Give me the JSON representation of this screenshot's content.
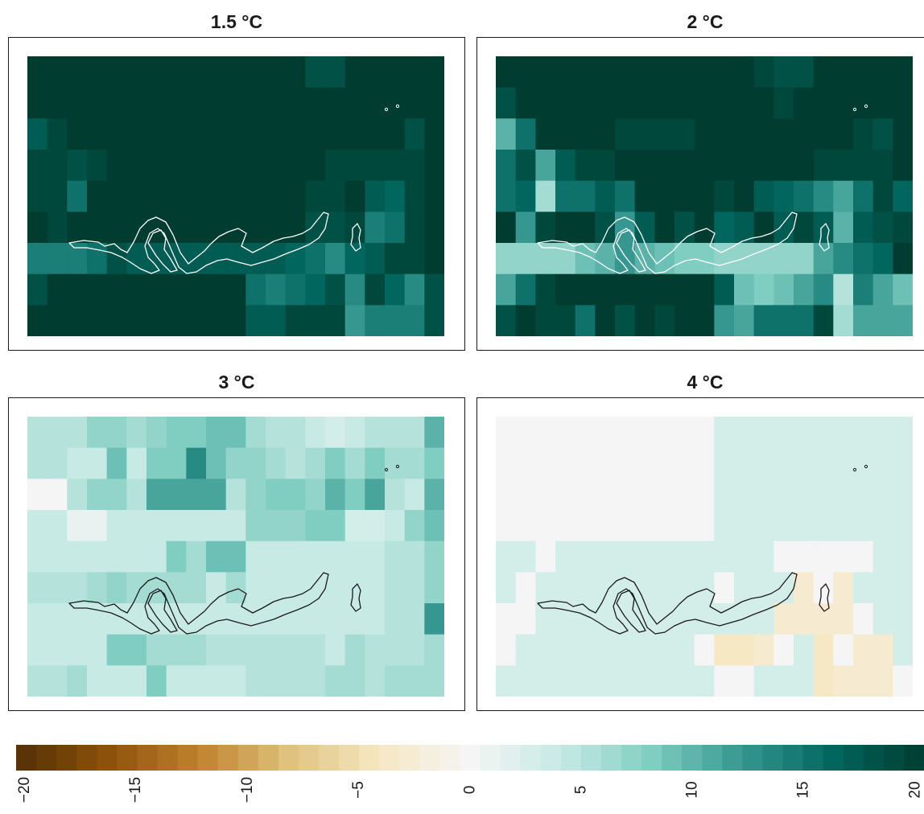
{
  "chart_data": {
    "type": "heatmap",
    "layout": "2x2 panel grid with shared horizontal colorbar at bottom",
    "grid": {
      "cols": 21,
      "rows": 9
    },
    "colormap": "BrBG diverging (brown negative, teal positive)",
    "color_range": [
      -20,
      20
    ],
    "panels": [
      {
        "title": "1.5 °C",
        "values": [
          [
            20,
            20,
            20,
            20,
            20,
            20,
            20,
            20,
            20,
            20,
            20,
            20,
            20,
            20,
            18,
            18,
            20,
            20,
            20,
            20,
            20
          ],
          [
            20,
            20,
            20,
            20,
            20,
            20,
            20,
            20,
            20,
            20,
            20,
            20,
            20,
            20,
            20,
            20,
            20,
            20,
            20,
            20,
            20
          ],
          [
            17,
            19,
            20,
            20,
            20,
            20,
            20,
            20,
            20,
            20,
            20,
            20,
            20,
            20,
            20,
            20,
            20,
            20,
            20,
            18,
            20
          ],
          [
            19,
            19,
            18,
            19,
            20,
            20,
            20,
            20,
            20,
            20,
            20,
            20,
            20,
            20,
            20,
            19,
            19,
            19,
            19,
            19,
            20
          ],
          [
            19,
            19,
            15,
            20,
            20,
            20,
            20,
            20,
            20,
            20,
            20,
            20,
            20,
            20,
            19,
            19,
            20,
            17,
            16,
            19,
            20
          ],
          [
            20,
            19,
            20,
            20,
            20,
            20,
            20,
            20,
            20,
            20,
            20,
            20,
            20,
            20,
            18,
            18,
            19,
            14,
            15,
            19,
            20
          ],
          [
            14,
            14,
            14,
            15,
            18,
            17,
            17,
            17,
            17,
            17,
            17,
            17,
            17,
            16,
            15,
            13,
            16,
            17,
            19,
            19,
            20
          ],
          [
            18,
            20,
            20,
            20,
            20,
            20,
            20,
            20,
            20,
            20,
            20,
            15,
            14,
            15,
            16,
            18,
            13,
            19,
            16,
            13,
            18
          ],
          [
            20,
            20,
            20,
            20,
            20,
            20,
            20,
            20,
            20,
            20,
            20,
            17,
            17,
            19,
            19,
            19,
            12,
            14,
            14,
            14,
            18
          ]
        ]
      },
      {
        "title": "2 °C",
        "values": [
          [
            20,
            20,
            20,
            20,
            20,
            20,
            20,
            20,
            20,
            20,
            20,
            20,
            20,
            19,
            18,
            18,
            20,
            20,
            20,
            20,
            20
          ],
          [
            18,
            20,
            20,
            20,
            20,
            20,
            20,
            20,
            20,
            20,
            20,
            20,
            20,
            20,
            19,
            20,
            20,
            20,
            20,
            20,
            20
          ],
          [
            10,
            15,
            20,
            20,
            20,
            20,
            19,
            19,
            19,
            19,
            20,
            20,
            20,
            20,
            20,
            20,
            20,
            20,
            19,
            18,
            20
          ],
          [
            15,
            18,
            11,
            17,
            19,
            19,
            20,
            20,
            20,
            20,
            20,
            20,
            20,
            20,
            20,
            20,
            19,
            19,
            19,
            19,
            20
          ],
          [
            15,
            16,
            6,
            15,
            15,
            17,
            15,
            20,
            20,
            20,
            20,
            19,
            20,
            17,
            16,
            15,
            13,
            11,
            15,
            19,
            16
          ],
          [
            20,
            12,
            19,
            20,
            20,
            18,
            12,
            17,
            20,
            18,
            20,
            16,
            17,
            20,
            17,
            19,
            17,
            10,
            17,
            18,
            19
          ],
          [
            7,
            7,
            7,
            7,
            9,
            10,
            12,
            10,
            9,
            8,
            8,
            7,
            7,
            7,
            7,
            7,
            11,
            13,
            15,
            16,
            20
          ],
          [
            11,
            15,
            19,
            20,
            20,
            20,
            20,
            20,
            20,
            20,
            20,
            17,
            9,
            8,
            9,
            11,
            13,
            5,
            14,
            11,
            9
          ],
          [
            18,
            20,
            19,
            19,
            15,
            20,
            18,
            20,
            19,
            20,
            20,
            12,
            11,
            15,
            15,
            15,
            19,
            6,
            11,
            11,
            11
          ]
        ]
      },
      {
        "title": "3 °C",
        "values": [
          [
            5,
            5,
            5,
            7,
            7,
            6,
            7,
            8,
            8,
            9,
            9,
            6,
            5,
            5,
            4,
            3,
            4,
            5,
            5,
            5,
            10
          ],
          [
            5,
            5,
            4,
            4,
            9,
            4,
            8,
            8,
            13,
            9,
            7,
            7,
            6,
            5,
            6,
            8,
            6,
            8,
            6,
            6,
            8
          ],
          [
            0,
            0,
            5,
            7,
            7,
            5,
            11,
            11,
            11,
            11,
            5,
            7,
            8,
            8,
            7,
            10,
            8,
            11,
            5,
            4,
            10
          ],
          [
            4,
            4,
            1,
            1,
            4,
            4,
            4,
            4,
            4,
            4,
            4,
            7,
            7,
            7,
            8,
            8,
            3,
            3,
            4,
            7,
            9
          ],
          [
            4,
            4,
            4,
            4,
            4,
            4,
            4,
            8,
            6,
            9,
            9,
            4,
            4,
            4,
            4,
            4,
            4,
            4,
            5,
            5,
            7
          ],
          [
            5,
            5,
            5,
            6,
            7,
            6,
            6,
            6,
            6,
            4,
            6,
            4,
            4,
            4,
            4,
            4,
            4,
            4,
            5,
            5,
            7
          ],
          [
            4,
            4,
            4,
            4,
            4,
            4,
            4,
            4,
            4,
            4,
            4,
            4,
            4,
            4,
            4,
            4,
            4,
            4,
            5,
            5,
            12
          ],
          [
            4,
            4,
            4,
            4,
            8,
            8,
            6,
            6,
            6,
            5,
            5,
            5,
            5,
            5,
            5,
            4,
            6,
            5,
            5,
            5,
            6
          ],
          [
            5,
            5,
            6,
            4,
            4,
            4,
            8,
            4,
            4,
            4,
            4,
            5,
            5,
            5,
            5,
            6,
            6,
            5,
            6,
            6,
            6
          ]
        ]
      },
      {
        "title": "4 °C",
        "values": [
          [
            0,
            0,
            0,
            0,
            0,
            0,
            0,
            0,
            0,
            0,
            0,
            3,
            3,
            3,
            3,
            3,
            3,
            3,
            3,
            3,
            3
          ],
          [
            0,
            0,
            0,
            0,
            0,
            0,
            0,
            0,
            0,
            0,
            0,
            3,
            3,
            3,
            3,
            3,
            3,
            3,
            3,
            3,
            3
          ],
          [
            0,
            0,
            0,
            0,
            0,
            0,
            0,
            0,
            0,
            0,
            0,
            3,
            3,
            3,
            3,
            3,
            3,
            3,
            3,
            3,
            3
          ],
          [
            0,
            0,
            0,
            0,
            0,
            0,
            0,
            0,
            0,
            0,
            0,
            3,
            3,
            3,
            3,
            3,
            3,
            3,
            3,
            3,
            3
          ],
          [
            3,
            3,
            0,
            3,
            3,
            3,
            3,
            3,
            3,
            3,
            3,
            3,
            3,
            3,
            0,
            0,
            0,
            0,
            0,
            3,
            3
          ],
          [
            3,
            0,
            3,
            3,
            3,
            3,
            3,
            3,
            3,
            3,
            3,
            0,
            3,
            3,
            3,
            -3,
            0,
            -3,
            3,
            3,
            3
          ],
          [
            0,
            0,
            3,
            3,
            3,
            3,
            3,
            3,
            3,
            3,
            3,
            3,
            3,
            3,
            -3,
            -3,
            -3,
            -3,
            0,
            3,
            3
          ],
          [
            0,
            3,
            3,
            3,
            3,
            3,
            3,
            3,
            3,
            3,
            0,
            -4,
            -4,
            -3,
            0,
            3,
            -4,
            0,
            -3,
            -3,
            3
          ],
          [
            3,
            3,
            3,
            3,
            3,
            3,
            3,
            3,
            3,
            3,
            3,
            0,
            0,
            3,
            3,
            3,
            -4,
            -3,
            -3,
            -3,
            0
          ]
        ]
      }
    ],
    "colorbar": {
      "ticks": [
        "−20",
        "−15",
        "−10",
        "−5",
        "0",
        "5",
        "10",
        "15",
        "20"
      ],
      "tick_values": [
        -20,
        -15,
        -10,
        -5,
        0,
        5,
        10,
        15,
        20
      ]
    }
  },
  "colors": {
    "stops": [
      "#543005",
      "#8c510a",
      "#bf812d",
      "#dfc27d",
      "#f6e8c3",
      "#f5f5f5",
      "#c7eae5",
      "#80cdc1",
      "#35978f",
      "#01665e",
      "#003c30"
    ]
  }
}
